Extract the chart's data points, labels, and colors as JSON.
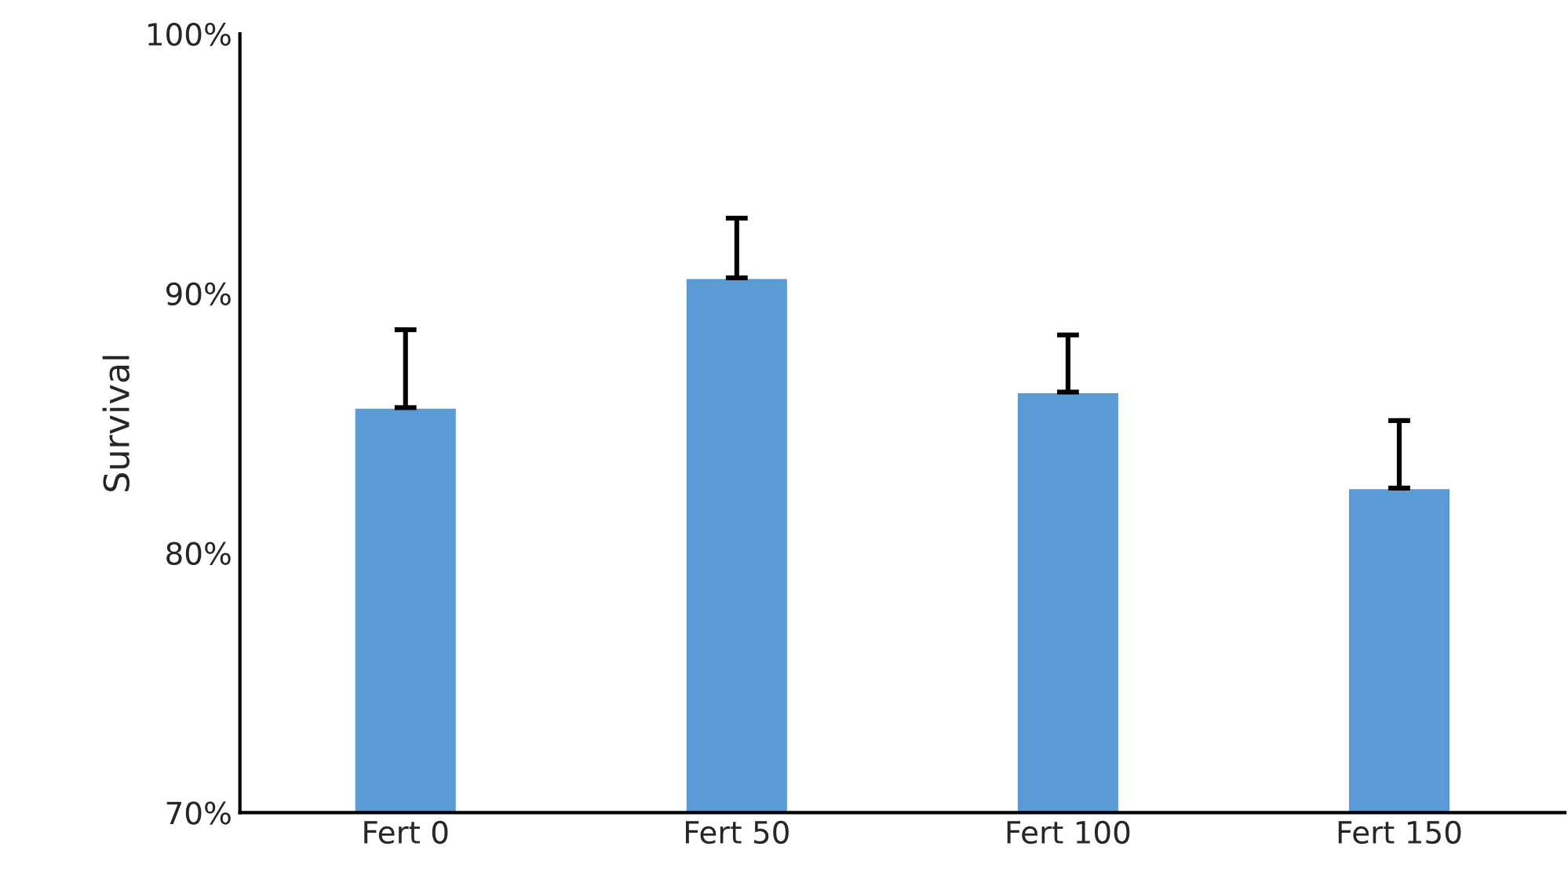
{
  "chart_data": {
    "type": "bar",
    "ylabel": "Survival",
    "categories": [
      "Fert 0",
      "Fert 50",
      "Fert 100",
      "Fert 150"
    ],
    "values": [
      85.6,
      90.6,
      86.2,
      82.5
    ],
    "errors": [
      [
        85.6,
        88.6
      ],
      [
        90.6,
        92.9
      ],
      [
        86.2,
        88.4
      ],
      [
        82.5,
        85.1
      ]
    ],
    "color": "#5b9bd5",
    "ylim": [
      70,
      100
    ],
    "yticks": [
      {
        "value": 70,
        "label": "70%"
      },
      {
        "value": 80,
        "label": "80%"
      },
      {
        "value": 90,
        "label": "90%"
      },
      {
        "value": 100,
        "label": "100%"
      }
    ],
    "grid": false,
    "legend": false
  }
}
